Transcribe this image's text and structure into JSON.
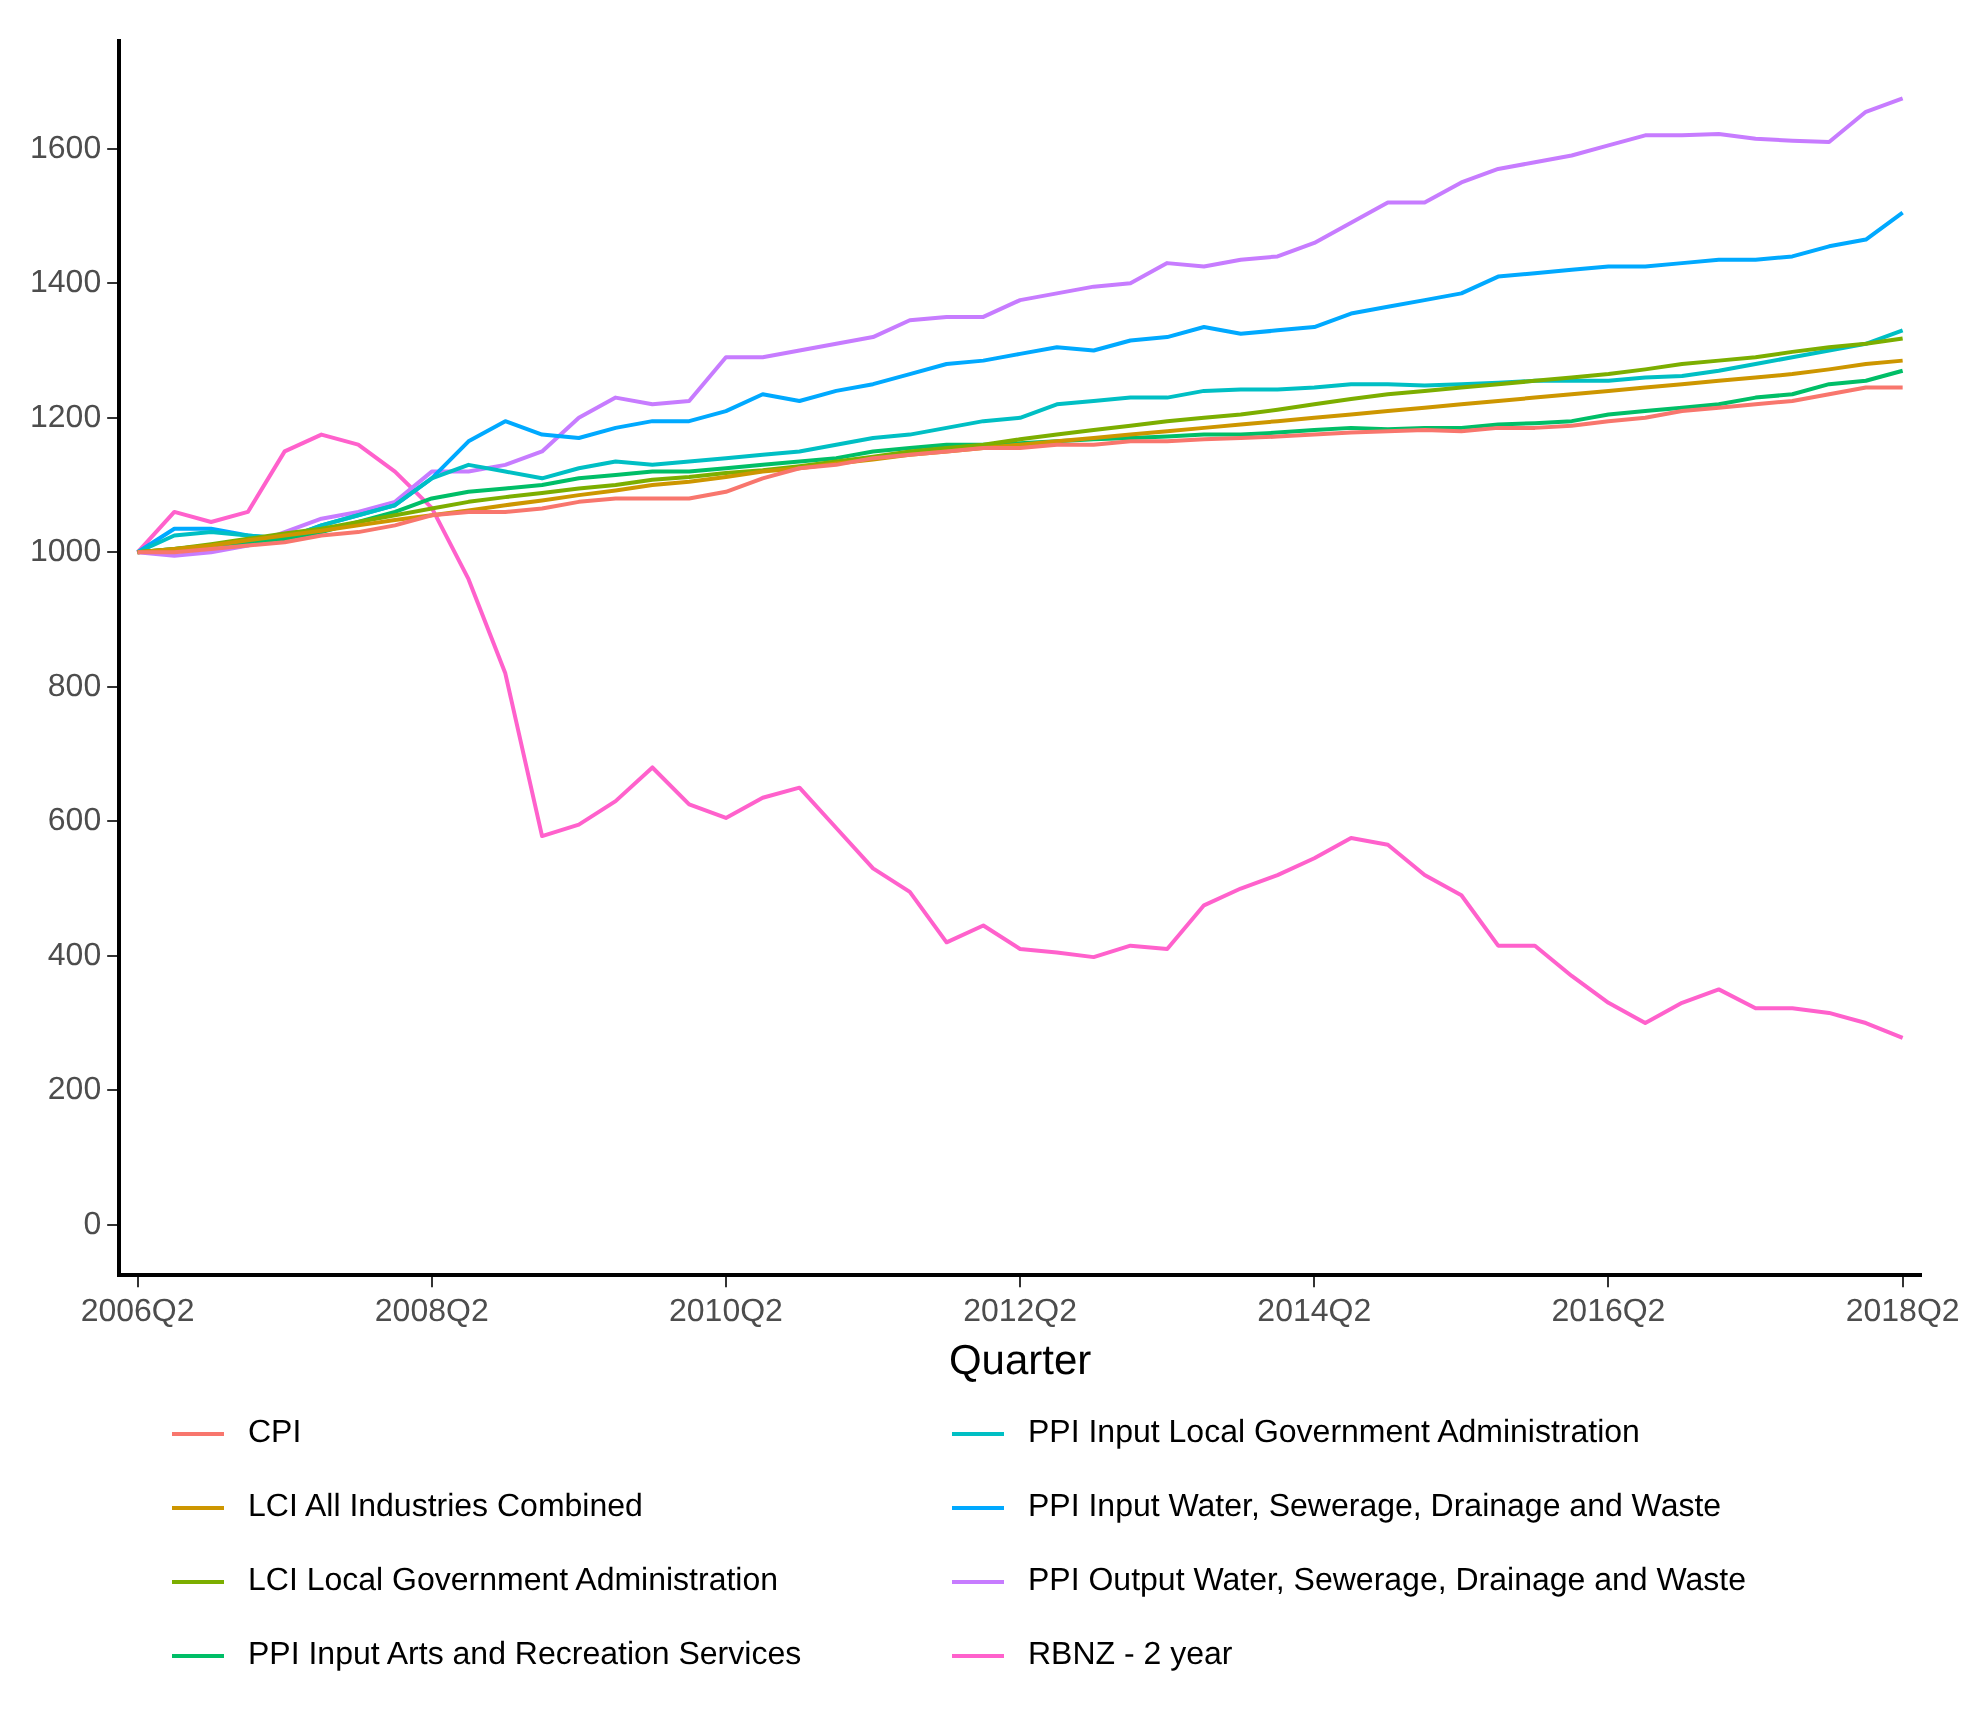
{
  "chart_data": {
    "type": "line",
    "xlabel": "Quarter",
    "categories": [
      "2006Q2",
      null,
      null,
      null,
      null,
      null,
      null,
      null,
      "2008Q2",
      null,
      null,
      null,
      null,
      null,
      null,
      null,
      "2010Q2",
      null,
      null,
      null,
      null,
      null,
      null,
      null,
      "2012Q2",
      null,
      null,
      null,
      null,
      null,
      null,
      null,
      "2014Q2",
      null,
      null,
      null,
      null,
      null,
      null,
      null,
      "2016Q2",
      null,
      null,
      null,
      null,
      null,
      null,
      null,
      "2018Q2"
    ],
    "ylim": [
      -75,
      1760
    ],
    "yticks": [
      0,
      200,
      400,
      600,
      800,
      1000,
      1200,
      1400,
      1600
    ],
    "grid": false,
    "legend": "bottom",
    "marker": "none",
    "line_style": "solid",
    "series": [
      {
        "name": "CPI",
        "color": "#f8766d",
        "values": [
          1000,
          1000,
          1005,
          1010,
          1015,
          1025,
          1030,
          1040,
          1055,
          1060,
          1060,
          1065,
          1075,
          1080,
          1080,
          1080,
          1090,
          1110,
          1125,
          1130,
          1140,
          1145,
          1150,
          1155,
          1155,
          1160,
          1160,
          1165,
          1165,
          1168,
          1170,
          1172,
          1175,
          1178,
          1180,
          1182,
          1180,
          1185,
          1185,
          1188,
          1195,
          1200,
          1210,
          1215,
          1220,
          1225,
          1235,
          1245,
          1245
        ]
      },
      {
        "name": "LCI All Industries Combined",
        "color": "#cd9600",
        "values": [
          1000,
          1005,
          1010,
          1018,
          1025,
          1032,
          1040,
          1048,
          1055,
          1062,
          1070,
          1077,
          1085,
          1092,
          1100,
          1105,
          1112,
          1120,
          1125,
          1132,
          1138,
          1145,
          1150,
          1155,
          1160,
          1165,
          1170,
          1175,
          1180,
          1185,
          1190,
          1195,
          1200,
          1205,
          1210,
          1215,
          1220,
          1225,
          1230,
          1235,
          1240,
          1245,
          1250,
          1255,
          1260,
          1265,
          1272,
          1280,
          1285
        ]
      },
      {
        "name": "LCI Local Government Administration",
        "color": "#7cae00",
        "values": [
          1000,
          1005,
          1012,
          1020,
          1028,
          1035,
          1045,
          1055,
          1065,
          1075,
          1082,
          1088,
          1095,
          1100,
          1108,
          1112,
          1118,
          1122,
          1128,
          1135,
          1142,
          1150,
          1155,
          1160,
          1168,
          1175,
          1182,
          1188,
          1195,
          1200,
          1205,
          1212,
          1220,
          1228,
          1235,
          1240,
          1245,
          1250,
          1255,
          1260,
          1265,
          1272,
          1280,
          1285,
          1290,
          1298,
          1305,
          1310,
          1318
        ]
      },
      {
        "name": "PPI Input Arts and Recreation Services",
        "color": "#00be67",
        "values": [
          1000,
          1005,
          1010,
          1015,
          1020,
          1030,
          1045,
          1060,
          1080,
          1090,
          1095,
          1100,
          1110,
          1115,
          1120,
          1120,
          1125,
          1130,
          1135,
          1140,
          1150,
          1155,
          1160,
          1160,
          1162,
          1165,
          1168,
          1170,
          1172,
          1175,
          1175,
          1178,
          1182,
          1185,
          1183,
          1185,
          1185,
          1190,
          1192,
          1195,
          1205,
          1210,
          1215,
          1220,
          1230,
          1235,
          1250,
          1255,
          1270
        ]
      },
      {
        "name": "PPI Input Local Government Administration",
        "color": "#00bfc4",
        "values": [
          1000,
          1025,
          1030,
          1025,
          1020,
          1040,
          1055,
          1070,
          1110,
          1130,
          1120,
          1110,
          1125,
          1135,
          1130,
          1135,
          1140,
          1145,
          1150,
          1160,
          1170,
          1175,
          1185,
          1195,
          1200,
          1220,
          1225,
          1230,
          1230,
          1240,
          1242,
          1242,
          1245,
          1250,
          1250,
          1248,
          1250,
          1252,
          1255,
          1255,
          1255,
          1260,
          1262,
          1270,
          1280,
          1290,
          1300,
          1310,
          1330
        ]
      },
      {
        "name": "PPI Input Water, Sewerage, Drainage and Waste",
        "color": "#00a9ff",
        "values": [
          1000,
          1035,
          1035,
          1025,
          1020,
          1040,
          1055,
          1070,
          1110,
          1165,
          1195,
          1175,
          1170,
          1185,
          1195,
          1195,
          1210,
          1235,
          1225,
          1240,
          1250,
          1265,
          1280,
          1285,
          1295,
          1305,
          1300,
          1315,
          1320,
          1335,
          1325,
          1330,
          1335,
          1355,
          1365,
          1375,
          1385,
          1410,
          1415,
          1420,
          1425,
          1425,
          1430,
          1435,
          1435,
          1440,
          1455,
          1465,
          1505
        ]
      },
      {
        "name": "PPI Output Water, Sewerage, Drainage and Waste",
        "color": "#c77cff",
        "values": [
          1000,
          995,
          1000,
          1010,
          1030,
          1050,
          1060,
          1075,
          1120,
          1120,
          1130,
          1150,
          1200,
          1230,
          1220,
          1225,
          1290,
          1290,
          1300,
          1310,
          1320,
          1345,
          1350,
          1350,
          1375,
          1385,
          1395,
          1400,
          1430,
          1425,
          1435,
          1440,
          1460,
          1490,
          1520,
          1520,
          1550,
          1570,
          1580,
          1590,
          1605,
          1620,
          1620,
          1622,
          1615,
          1612,
          1610,
          1655,
          1675
        ]
      },
      {
        "name": "RBNZ - 2 year",
        "color": "#ff61cc",
        "values": [
          1000,
          1060,
          1045,
          1060,
          1150,
          1175,
          1160,
          1120,
          1066,
          960,
          820,
          578,
          595,
          630,
          680,
          625,
          605,
          635,
          650,
          590,
          530,
          495,
          420,
          445,
          410,
          405,
          398,
          415,
          410,
          475,
          500,
          520,
          545,
          575,
          565,
          520,
          490,
          415,
          415,
          370,
          330,
          300,
          330,
          350,
          322,
          322,
          315,
          300,
          278
        ]
      }
    ]
  }
}
